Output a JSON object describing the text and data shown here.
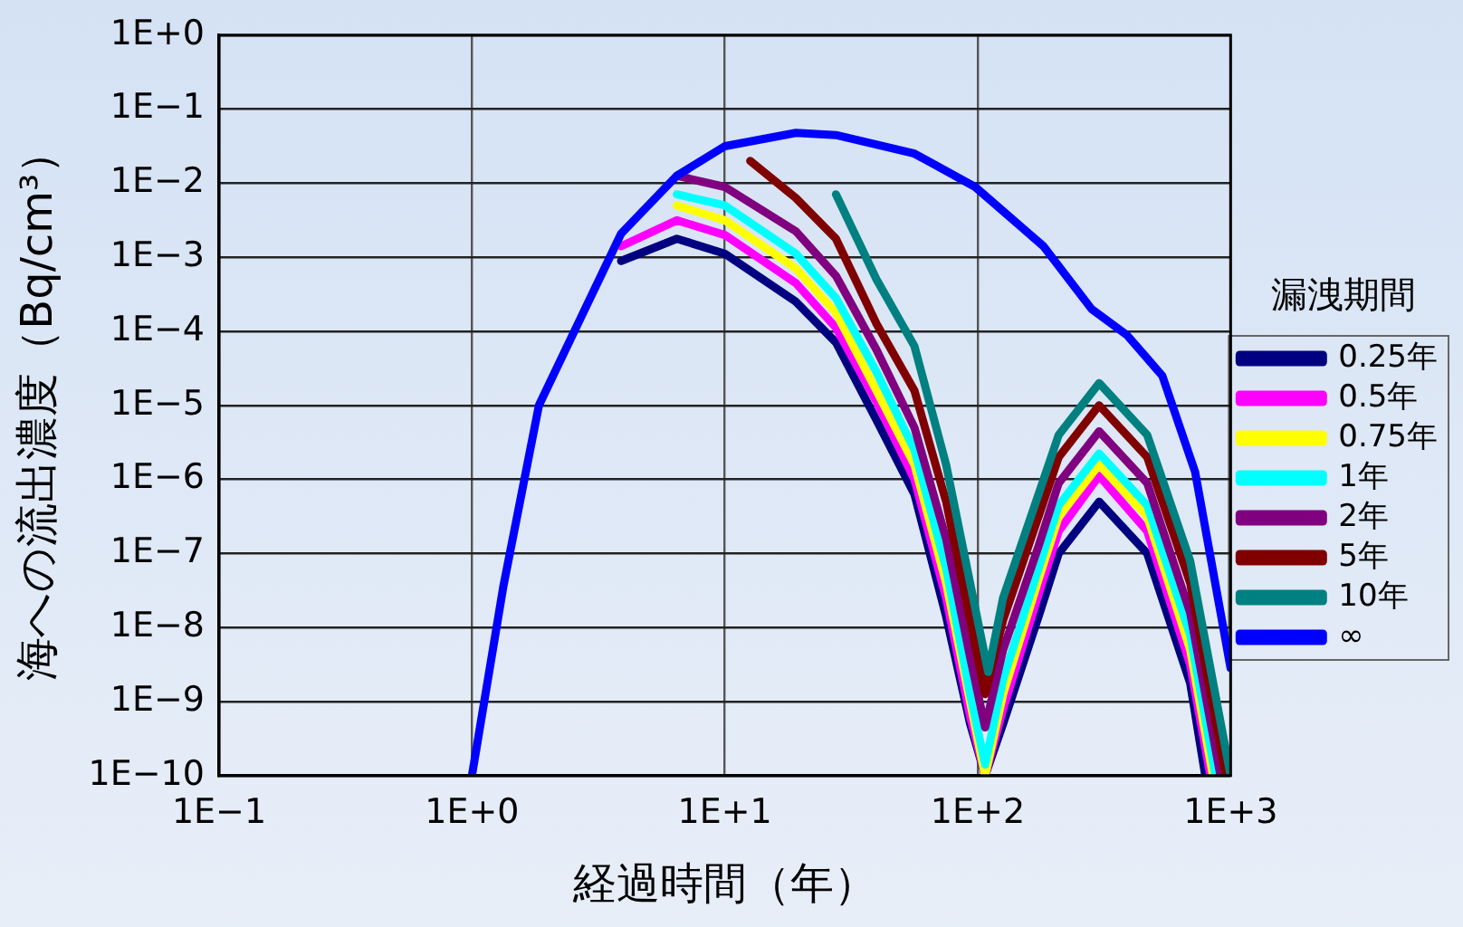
{
  "chart_data": {
    "type": "line",
    "xlabel": "経過時間（年）",
    "ylabel": "海への流出濃度（Bq/cm³）",
    "legend_title": "漏洩期間",
    "log": "xy",
    "grid": true,
    "legend": "right",
    "marker": "none",
    "line_style": "solid",
    "xlim": [
      0.1,
      1000
    ],
    "ylim": [
      1e-10,
      1
    ],
    "xticks": [
      {
        "value": 0.1,
        "label": "1E−1"
      },
      {
        "value": 1,
        "label": "1E+0"
      },
      {
        "value": 10,
        "label": "1E+1"
      },
      {
        "value": 100,
        "label": "1E+2"
      },
      {
        "value": 1000,
        "label": "1E+3"
      }
    ],
    "yticks": [
      {
        "value": 1e-10,
        "label": "1E−10"
      },
      {
        "value": 1e-09,
        "label": "1E−9"
      },
      {
        "value": 1e-08,
        "label": "1E−8"
      },
      {
        "value": 1e-07,
        "label": "1E−7"
      },
      {
        "value": 1e-06,
        "label": "1E−6"
      },
      {
        "value": 1e-05,
        "label": "1E−5"
      },
      {
        "value": 0.0001,
        "label": "1E−4"
      },
      {
        "value": 0.001,
        "label": "1E−3"
      },
      {
        "value": 0.01,
        "label": "1E−2"
      },
      {
        "value": 0.1,
        "label": "1E−1"
      },
      {
        "value": 1,
        "label": "1E+0"
      }
    ],
    "series": [
      {
        "name": "0.25年",
        "color": "#000080",
        "x": [
          3.89,
          6.46,
          10,
          19.1,
          27.5,
          39.8,
          56.2,
          75,
          93.3,
          107,
          126,
          174,
          209,
          302,
          468,
          692,
          794
        ],
        "values": [
          0.000891,
          0.00178,
          0.00112,
          0.000251,
          7.08e-05,
          6.31e-06,
          6.31e-07,
          1.41e-08,
          5.01e-10,
          1e-10,
          5.01e-10,
          1.41e-08,
          1e-07,
          5.01e-07,
          1e-07,
          1.78e-09,
          1e-10
        ]
      },
      {
        "name": "0.5年",
        "color": "#ff00ff",
        "x": [
          3.89,
          6.46,
          10,
          19.1,
          27.5,
          39.8,
          56.2,
          75,
          93.3,
          107,
          126,
          174,
          209,
          302,
          468,
          692,
          832
        ],
        "values": [
          0.00141,
          0.00316,
          0.002,
          0.000447,
          0.000112,
          1.12e-05,
          1e-06,
          2.51e-08,
          6.31e-10,
          1e-10,
          7.94e-10,
          2.82e-08,
          2e-07,
          1.12e-06,
          2e-07,
          3.16e-09,
          1e-10
        ]
      },
      {
        "name": "0.75年",
        "color": "#ffff00",
        "x": [
          6.46,
          10,
          19.1,
          27.5,
          39.8,
          56.2,
          75,
          93.3,
          107,
          126,
          174,
          209,
          302,
          468,
          692,
          851
        ],
        "values": [
          0.00501,
          0.00316,
          0.000708,
          0.000178,
          1.58e-05,
          1.58e-06,
          3.98e-08,
          1e-09,
          1e-10,
          1.26e-09,
          4.47e-08,
          3.16e-07,
          1.58e-06,
          3.16e-07,
          5.01e-09,
          1e-10
        ]
      },
      {
        "name": "1年",
        "color": "#00ffff",
        "x": [
          6.46,
          10,
          19.1,
          27.5,
          39.8,
          56.2,
          75,
          93.3,
          107,
          126,
          174,
          209,
          302,
          468,
          692,
          871
        ],
        "values": [
          0.00708,
          0.00501,
          0.00112,
          0.000282,
          2.82e-05,
          2.51e-06,
          6.31e-08,
          1.26e-09,
          1.41e-10,
          2e-09,
          6.31e-08,
          4.47e-07,
          2.24e-06,
          4.47e-07,
          7.94e-09,
          1e-10
        ]
      },
      {
        "name": "2年",
        "color": "#800080",
        "x": [
          6.46,
          10,
          19.1,
          27.5,
          39.8,
          56.2,
          75,
          93.3,
          107,
          126,
          174,
          209,
          302,
          468,
          692,
          912
        ],
        "values": [
          0.0126,
          0.00891,
          0.00224,
          0.000562,
          5.62e-05,
          5.01e-06,
          1.58e-07,
          3.98e-09,
          4.47e-10,
          5.01e-09,
          1.26e-07,
          8.91e-07,
          4.47e-06,
          8.91e-07,
          1.58e-08,
          1e-10
        ]
      },
      {
        "name": "5年",
        "color": "#800000",
        "x": [
          12.6,
          19.1,
          27.5,
          39.8,
          56.2,
          75,
          93.3,
          107,
          126,
          174,
          209,
          302,
          468,
          692,
          955
        ],
        "values": [
          0.02,
          0.00631,
          0.00178,
          0.000126,
          1.58e-05,
          5.01e-07,
          1.26e-08,
          1.26e-09,
          1.26e-08,
          3.16e-07,
          2e-06,
          1e-05,
          2e-06,
          3.98e-08,
          1e-10
        ]
      },
      {
        "name": "10年",
        "color": "#008080",
        "x": [
          27.5,
          39.8,
          56.2,
          75,
          93.3,
          110,
          126,
          174,
          209,
          302,
          468,
          692,
          1000
        ],
        "values": [
          0.00708,
          0.000501,
          6.31e-05,
          1.58e-06,
          3.98e-08,
          2.51e-09,
          2.51e-08,
          6.31e-07,
          3.98e-06,
          2e-05,
          3.98e-06,
          7.94e-08,
          1e-10
        ]
      },
      {
        "name": "∞",
        "color": "#0000ff",
        "x": [
          1,
          1.33,
          1.84,
          2.69,
          3.89,
          6.46,
          10,
          19.1,
          27.5,
          56.2,
          97.7,
          182,
          282,
          389,
          537,
          724,
          1000
        ],
        "values": [
          1e-10,
          3.55e-08,
          1e-05,
          0.000151,
          0.00209,
          0.0126,
          0.0316,
          0.0479,
          0.0447,
          0.0251,
          0.00891,
          0.00141,
          0.0002,
          8.91e-05,
          2.51e-05,
          1.26e-06,
          2.82e-09
        ]
      }
    ]
  }
}
